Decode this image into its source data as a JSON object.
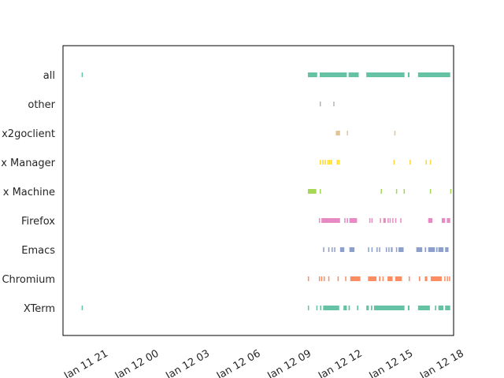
{
  "chart_data": {
    "type": "timeline",
    "title": "",
    "xlabel": "",
    "ylabel": "",
    "categories": [
      "all",
      "other",
      "x2goclient",
      "Virtual Box Manager",
      "VirtualBox Machine",
      "Firefox",
      "Emacs",
      "Chromium",
      "XTerm"
    ],
    "category_labels_visible": [
      "all",
      "other",
      "x2goclient",
      "x Manager",
      "x Machine",
      "Firefox",
      "Emacs",
      "Chromium",
      "XTerm"
    ],
    "x_tick_labels": [
      "Jan 11 21",
      "Jan 12 00",
      "Jan 12 03",
      "Jan 12 06",
      "Jan 12 09",
      "Jan 12 12",
      "Jan 12 15",
      "Jan 12 18"
    ],
    "x_ticks_hours": [
      21,
      24,
      27,
      30,
      33,
      36,
      39,
      42
    ],
    "xlim_hours": [
      19.95,
      43.0
    ],
    "x_hour_origin_label": "Jan 11 00:00",
    "colors": {
      "all": "#66c2a5",
      "other": "#b3b3b3",
      "x2goclient": "#e5c494",
      "Virtual Box Manager": "#ffd92f",
      "VirtualBox Machine": "#a6d854",
      "Firefox": "#e78ac3",
      "Emacs": "#8da0cb",
      "Chromium": "#fc8d62",
      "XTerm": "#66c2a5",
      "axes": "#000000",
      "text": "#262626"
    },
    "series": [
      {
        "name": "XTerm",
        "intervals": [
          [
            21.05,
            21.12
          ],
          [
            34.4,
            34.47
          ],
          [
            34.9,
            34.97
          ],
          [
            35.12,
            35.2
          ],
          [
            35.3,
            36.25
          ],
          [
            36.5,
            36.7
          ],
          [
            36.8,
            36.88
          ],
          [
            37.3,
            37.38
          ],
          [
            37.85,
            38.0
          ],
          [
            38.12,
            38.2
          ],
          [
            38.3,
            40.1
          ],
          [
            40.3,
            40.4
          ],
          [
            40.9,
            41.6
          ],
          [
            41.9,
            41.98
          ],
          [
            42.1,
            42.4
          ],
          [
            42.5,
            42.8
          ]
        ]
      },
      {
        "name": "Chromium",
        "intervals": [
          [
            34.4,
            34.47
          ],
          [
            35.05,
            35.12
          ],
          [
            35.18,
            35.25
          ],
          [
            35.33,
            35.4
          ],
          [
            35.6,
            35.67
          ],
          [
            36.15,
            36.22
          ],
          [
            36.6,
            36.67
          ],
          [
            36.9,
            37.5
          ],
          [
            37.95,
            38.45
          ],
          [
            38.6,
            38.68
          ],
          [
            38.8,
            38.87
          ],
          [
            39.1,
            39.4
          ],
          [
            39.55,
            39.95
          ],
          [
            40.35,
            40.42
          ],
          [
            40.95,
            41.03
          ],
          [
            41.3,
            41.45
          ],
          [
            41.65,
            42.3
          ],
          [
            42.45,
            42.52
          ],
          [
            42.6,
            42.67
          ],
          [
            42.73,
            42.8
          ]
        ]
      },
      {
        "name": "Emacs",
        "intervals": [
          [
            35.3,
            35.37
          ],
          [
            35.6,
            35.67
          ],
          [
            35.8,
            35.87
          ],
          [
            35.95,
            36.02
          ],
          [
            36.3,
            36.55
          ],
          [
            36.85,
            37.15
          ],
          [
            37.95,
            38.02
          ],
          [
            38.15,
            38.22
          ],
          [
            38.45,
            38.52
          ],
          [
            38.6,
            38.67
          ],
          [
            39.0,
            39.07
          ],
          [
            39.15,
            39.22
          ],
          [
            39.3,
            39.4
          ],
          [
            39.6,
            39.67
          ],
          [
            39.75,
            40.05
          ],
          [
            40.8,
            41.15
          ],
          [
            41.3,
            41.38
          ],
          [
            41.5,
            41.9
          ],
          [
            41.97,
            42.05
          ],
          [
            42.1,
            42.4
          ],
          [
            42.5,
            42.7
          ]
        ]
      },
      {
        "name": "Firefox",
        "intervals": [
          [
            35.05,
            35.12
          ],
          [
            35.2,
            36.3
          ],
          [
            36.55,
            36.62
          ],
          [
            36.7,
            36.77
          ],
          [
            36.85,
            37.3
          ],
          [
            38.02,
            38.09
          ],
          [
            38.15,
            38.22
          ],
          [
            38.65,
            38.72
          ],
          [
            38.85,
            39.0
          ],
          [
            39.1,
            39.17
          ],
          [
            39.22,
            39.29
          ],
          [
            39.38,
            39.45
          ],
          [
            39.55,
            39.62
          ],
          [
            39.85,
            39.92
          ],
          [
            41.5,
            41.75
          ],
          [
            42.3,
            42.5
          ],
          [
            42.6,
            42.8
          ]
        ]
      },
      {
        "name": "VirtualBox Machine",
        "intervals": [
          [
            34.4,
            34.9
          ],
          [
            35.1,
            35.17
          ],
          [
            38.7,
            38.77
          ],
          [
            39.6,
            39.67
          ],
          [
            40.05,
            40.12
          ],
          [
            41.6,
            41.67
          ],
          [
            42.8,
            42.87
          ]
        ]
      },
      {
        "name": "Virtual Box Manager",
        "intervals": [
          [
            35.1,
            35.17
          ],
          [
            35.25,
            35.32
          ],
          [
            35.4,
            35.47
          ],
          [
            35.55,
            35.62
          ],
          [
            35.65,
            35.72
          ],
          [
            35.75,
            35.82
          ],
          [
            36.1,
            36.17
          ],
          [
            36.2,
            36.27
          ],
          [
            39.45,
            39.52
          ],
          [
            40.4,
            40.47
          ],
          [
            41.35,
            41.42
          ],
          [
            41.6,
            41.67
          ]
        ]
      },
      {
        "name": "x2goclient",
        "intervals": [
          [
            36.05,
            36.3
          ],
          [
            36.7,
            36.77
          ],
          [
            39.5,
            39.57
          ]
        ]
      },
      {
        "name": "other",
        "intervals": [
          [
            35.1,
            35.17
          ],
          [
            35.9,
            35.97
          ]
        ]
      },
      {
        "name": "all",
        "intervals": [
          [
            21.05,
            21.12
          ],
          [
            34.4,
            34.95
          ],
          [
            35.1,
            36.7
          ],
          [
            36.8,
            37.4
          ],
          [
            37.85,
            40.1
          ],
          [
            40.3,
            40.4
          ],
          [
            40.9,
            42.8
          ]
        ]
      }
    ]
  }
}
